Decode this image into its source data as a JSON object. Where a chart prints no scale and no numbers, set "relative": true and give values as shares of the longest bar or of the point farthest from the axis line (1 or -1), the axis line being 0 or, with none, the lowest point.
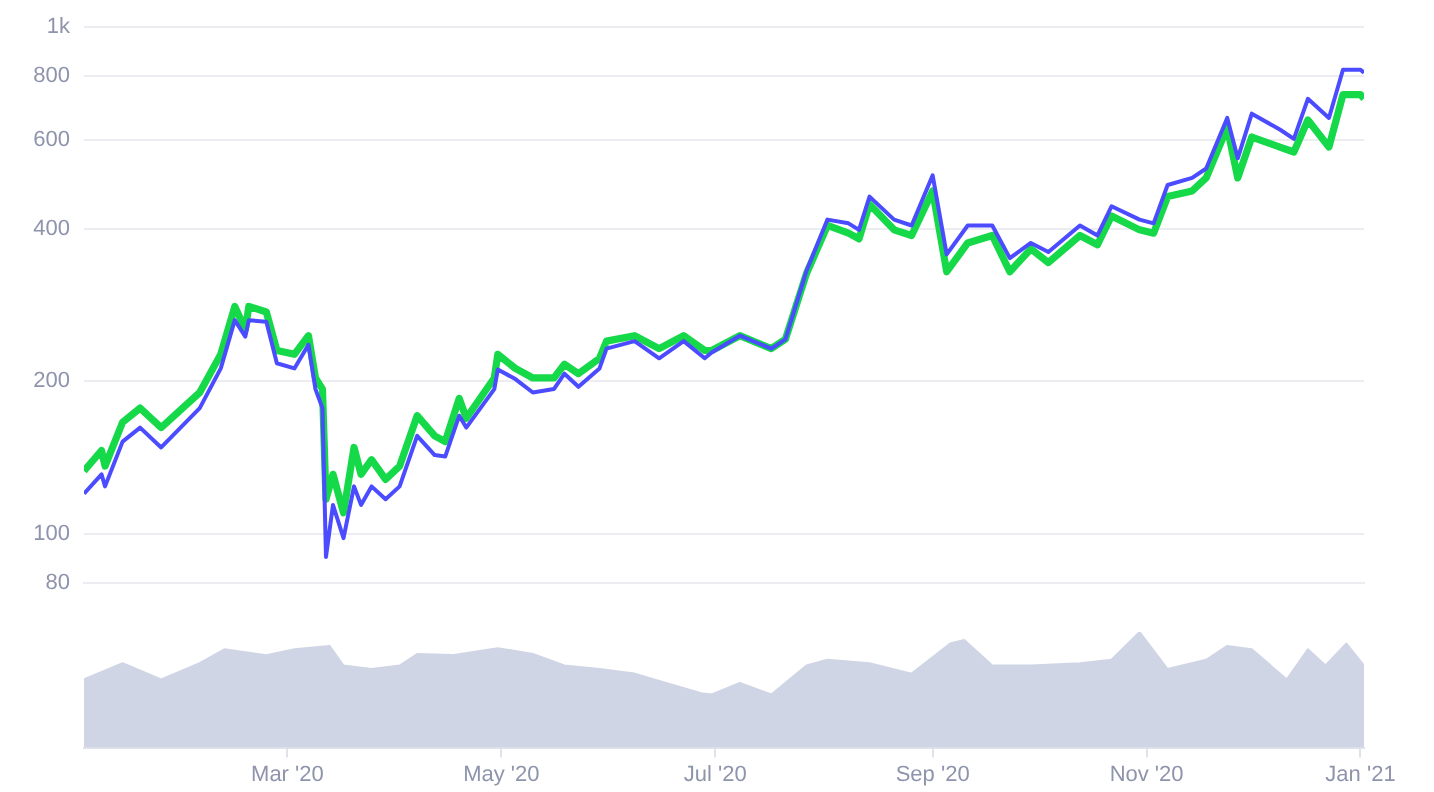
{
  "chart_data": [
    {
      "type": "line",
      "log": "y",
      "grid": "y",
      "tick_labels": "y",
      "marker": "none",
      "x": [
        "2020-01-03",
        "2020-01-08",
        "2020-01-09",
        "2020-01-14",
        "2020-01-19",
        "2020-01-25",
        "2020-02-05",
        "2020-02-11",
        "2020-02-15",
        "2020-02-18",
        "2020-02-19",
        "2020-02-24",
        "2020-02-27",
        "2020-03-03",
        "2020-03-07",
        "2020-03-09",
        "2020-03-11",
        "2020-03-12",
        "2020-03-14",
        "2020-03-17",
        "2020-03-20",
        "2020-03-22",
        "2020-03-25",
        "2020-03-29",
        "2020-04-02",
        "2020-04-07",
        "2020-04-12",
        "2020-04-15",
        "2020-04-19",
        "2020-04-21",
        "2020-04-29",
        "2020-04-30",
        "2020-05-05",
        "2020-05-10",
        "2020-05-16",
        "2020-05-19",
        "2020-05-23",
        "2020-05-29",
        "2020-05-31",
        "2020-06-08",
        "2020-06-15",
        "2020-06-22",
        "2020-06-28",
        "2020-06-30",
        "2020-07-08",
        "2020-07-17",
        "2020-07-21",
        "2020-07-27",
        "2020-08-02",
        "2020-08-08",
        "2020-08-11",
        "2020-08-14",
        "2020-08-21",
        "2020-08-26",
        "2020-09-01",
        "2020-09-05",
        "2020-09-11",
        "2020-09-18",
        "2020-09-23",
        "2020-09-29",
        "2020-10-04",
        "2020-10-13",
        "2020-10-18",
        "2020-10-22",
        "2020-10-30",
        "2020-11-03",
        "2020-11-07",
        "2020-11-14",
        "2020-11-18",
        "2020-11-24",
        "2020-11-27",
        "2020-12-01",
        "2020-12-09",
        "2020-12-13",
        "2020-12-17",
        "2020-12-23",
        "2020-12-27",
        "2021-01-01",
        "2021-01-02"
      ],
      "series": [
        {
          "color": "#4b4bff",
          "values": [
            120,
            131,
            124,
            152,
            162,
            148,
            177,
            212,
            264,
            245,
            264,
            262,
            217,
            212,
            236,
            193,
            177,
            90,
            114,
            98,
            124,
            114,
            124,
            117,
            124,
            156,
            143,
            142,
            171,
            162,
            193,
            211,
            202,
            190,
            193,
            207,
            195,
            212,
            232,
            240,
            222,
            240,
            222,
            228,
            246,
            232,
            242,
            330,
            417,
            410,
            398,
            463,
            417,
            406,
            510,
            356,
            406,
            406,
            350,
            375,
            360,
            406,
            388,
            443,
            417,
            410,
            488,
            504,
            526,
            662,
            551,
            675,
            628,
            602,
            722,
            662,
            824,
            824,
            813
          ]
        },
        {
          "color": "#16d94a",
          "values": [
            133,
            146,
            136,
            166,
            177,
            162,
            190,
            226,
            281,
            253,
            281,
            274,
            230,
            226,
            246,
            203,
            193,
            117,
            131,
            110,
            148,
            131,
            140,
            128,
            136,
            171,
            156,
            152,
            185,
            169,
            203,
            226,
            212,
            203,
            203,
            216,
            207,
            222,
            240,
            246,
            232,
            246,
            230,
            230,
            246,
            232,
            242,
            326,
            406,
            392,
            382,
            447,
            398,
            388,
            475,
            329,
            375,
            388,
            329,
            365,
            343,
            388,
            372,
            424,
            398,
            392,
            463,
            475,
            504,
            634,
            504,
            607,
            580,
            567,
            656,
            580,
            736,
            736,
            723
          ]
        }
      ],
      "xlim": [
        "2020-01-03",
        "2021-01-02"
      ],
      "ylim": [
        80,
        1000
      ],
      "yticks": [
        80,
        100,
        200,
        400,
        600,
        800,
        {
          "value": 1000,
          "label": "1k"
        }
      ]
    },
    {
      "type": "area",
      "relative": true,
      "tick_labels": "x",
      "marker": "none",
      "color": "#d0d5e6",
      "x": [
        "2020-01-03",
        "2020-01-14",
        "2020-01-25",
        "2020-02-05",
        "2020-02-12",
        "2020-02-24",
        "2020-03-03",
        "2020-03-13",
        "2020-03-17",
        "2020-03-25",
        "2020-04-02",
        "2020-04-07",
        "2020-04-17",
        "2020-04-30",
        "2020-05-10",
        "2020-05-19",
        "2020-05-29",
        "2020-06-08",
        "2020-06-17",
        "2020-06-27",
        "2020-06-30",
        "2020-07-08",
        "2020-07-17",
        "2020-07-27",
        "2020-08-02",
        "2020-08-14",
        "2020-08-26",
        "2020-09-06",
        "2020-09-10",
        "2020-09-18",
        "2020-09-29",
        "2020-10-13",
        "2020-10-22",
        "2020-10-30",
        "2020-11-07",
        "2020-11-18",
        "2020-11-24",
        "2020-12-01",
        "2020-12-11",
        "2020-12-17",
        "2020-12-22",
        "2020-12-28",
        "2021-01-02"
      ],
      "values": [
        0.59,
        0.73,
        0.59,
        0.73,
        0.85,
        0.8,
        0.85,
        0.88,
        0.71,
        0.68,
        0.71,
        0.81,
        0.8,
        0.86,
        0.81,
        0.71,
        0.68,
        0.64,
        0.56,
        0.47,
        0.46,
        0.56,
        0.46,
        0.71,
        0.76,
        0.73,
        0.64,
        0.9,
        0.93,
        0.71,
        0.71,
        0.73,
        0.76,
        1,
        0.68,
        0.76,
        0.88,
        0.85,
        0.59,
        0.85,
        0.71,
        0.9,
        0.71
      ],
      "xlim": [
        "2020-01-03",
        "2021-01-02"
      ],
      "xticks": [
        {
          "value": "2020-03-01",
          "label": "Mar '20"
        },
        {
          "value": "2020-05-01",
          "label": "May '20"
        },
        {
          "value": "2020-07-01",
          "label": "Jul '20"
        },
        {
          "value": "2020-09-01",
          "label": "Sep '20"
        },
        {
          "value": "2020-11-01",
          "label": "Nov '20"
        },
        {
          "value": "2021-01-01",
          "label": "Jan '21"
        }
      ]
    }
  ]
}
